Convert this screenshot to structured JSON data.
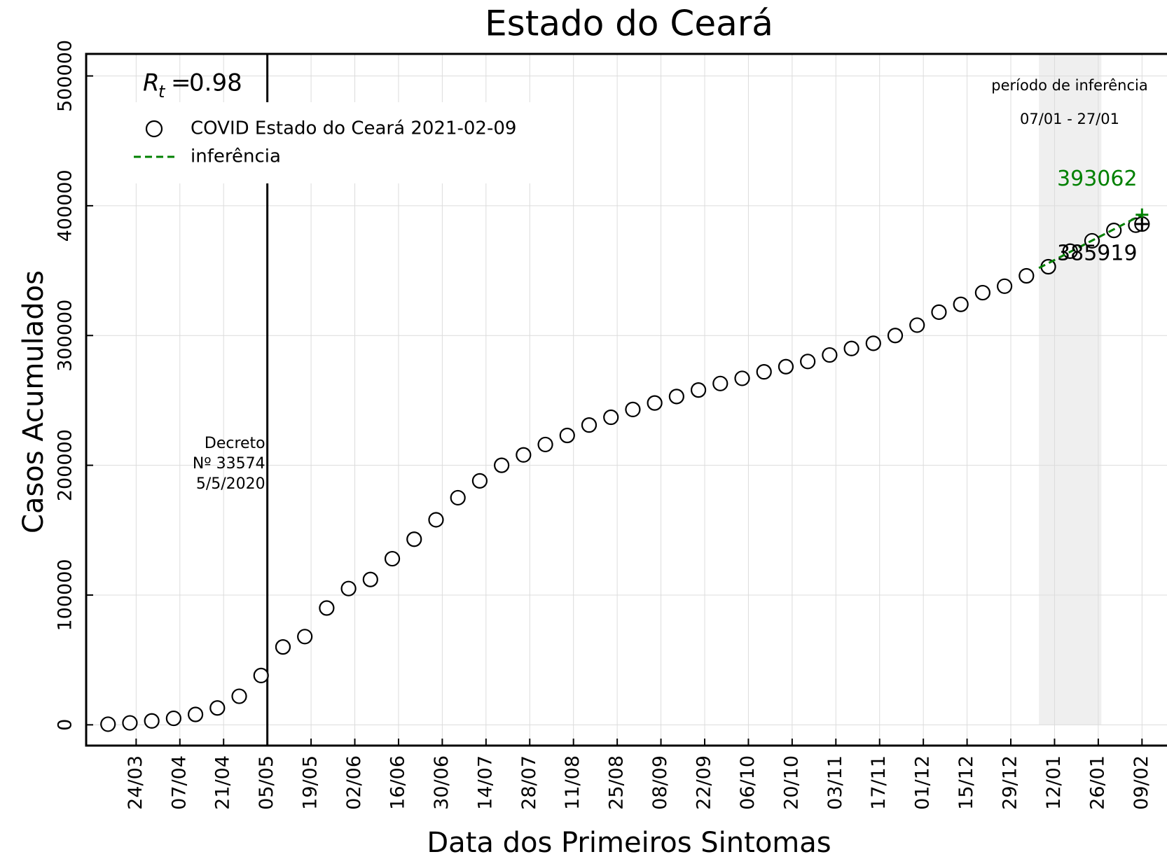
{
  "chart_data": {
    "type": "scatter",
    "title": "Estado do Ceará",
    "xlabel": "Data dos Primeiros Sintomas",
    "ylabel": "Casos Acumulados",
    "x": [
      "15/03",
      "22/03",
      "29/03",
      "05/04",
      "12/04",
      "19/04",
      "26/04",
      "03/05",
      "10/05",
      "17/05",
      "24/05",
      "31/05",
      "07/06",
      "14/06",
      "21/06",
      "28/06",
      "05/07",
      "12/07",
      "19/07",
      "26/07",
      "02/08",
      "09/08",
      "16/08",
      "23/08",
      "30/08",
      "06/09",
      "13/09",
      "20/09",
      "27/09",
      "04/10",
      "11/10",
      "18/10",
      "25/10",
      "01/11",
      "08/11",
      "15/11",
      "22/11",
      "29/11",
      "06/12",
      "13/12",
      "20/12",
      "27/12",
      "03/01",
      "10/01",
      "17/01",
      "24/01",
      "31/01",
      "07/02",
      "09/02"
    ],
    "series": [
      {
        "name": "COVID Estado do Ceará 2021-02-09",
        "color": "#000000",
        "values": [
          500,
          1500,
          3000,
          5000,
          8000,
          13000,
          22000,
          38000,
          60000,
          68000,
          90000,
          105000,
          112000,
          128000,
          143000,
          158000,
          175000,
          188000,
          200000,
          208000,
          216000,
          223000,
          231000,
          237000,
          243000,
          248000,
          253000,
          258000,
          263000,
          267000,
          272000,
          276000,
          280000,
          285000,
          290000,
          294000,
          300000,
          308000,
          318000,
          324000,
          333000,
          338000,
          346000,
          353000,
          365000,
          373000,
          381000,
          385000,
          385919
        ]
      },
      {
        "name": "inferência",
        "color": "#008000",
        "dashed": true,
        "x": [
          "07/01",
          "09/02"
        ],
        "values": [
          352000,
          393062
        ]
      }
    ],
    "xlim": [
      "08/03",
      "17/02"
    ],
    "ylim": [
      -16000,
      517000
    ],
    "xticks": [
      "24/03",
      "07/04",
      "21/04",
      "05/05",
      "19/05",
      "02/06",
      "16/06",
      "30/06",
      "14/07",
      "28/07",
      "11/08",
      "25/08",
      "08/09",
      "22/09",
      "06/10",
      "20/10",
      "03/11",
      "17/11",
      "01/12",
      "15/12",
      "29/12",
      "12/01",
      "26/01",
      "09/02"
    ],
    "yticks": [
      0,
      100000,
      200000,
      300000,
      400000,
      500000
    ],
    "grid": true,
    "legend": "upper left",
    "rt": {
      "symbol": "R",
      "subscript": "t",
      "relation": "=",
      "value": 0.98
    },
    "event": {
      "x": "05/05",
      "label_lines": [
        "Decreto",
        "Nº 33574",
        "5/5/2020"
      ]
    },
    "inference_period": {
      "title": "período de inferência",
      "range_label": "07/01 - 27/01",
      "start": "07/01",
      "end": "27/01"
    },
    "annotations": [
      {
        "x": "09/02",
        "value": 393062,
        "color": "#008000"
      },
      {
        "x": "09/02",
        "value": 385919,
        "color": "#000000"
      }
    ]
  }
}
